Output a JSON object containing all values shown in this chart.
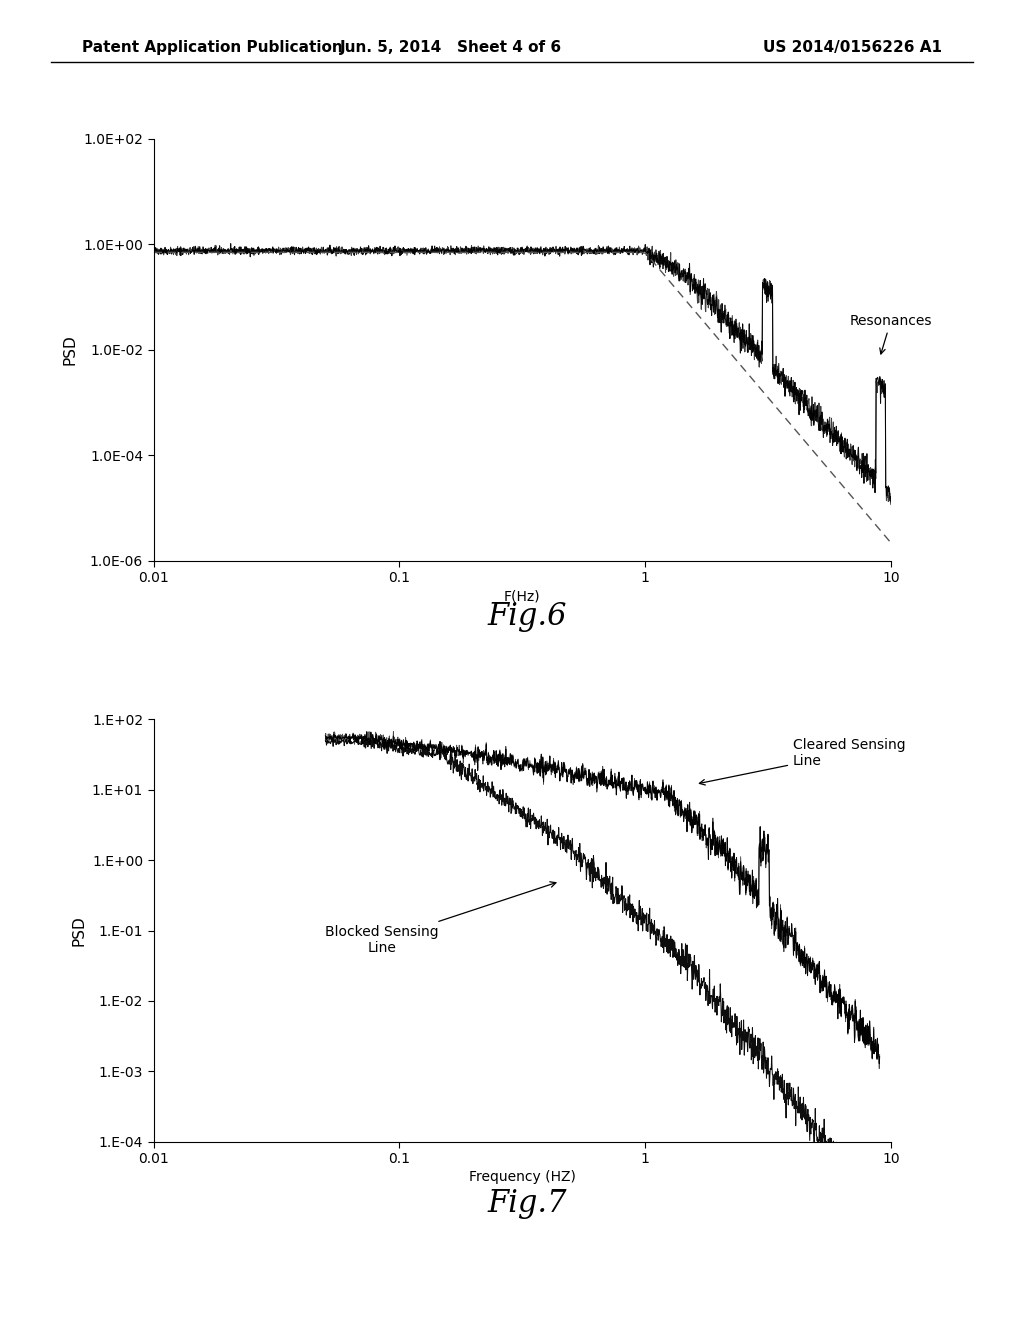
{
  "fig6": {
    "title": "Fig.6",
    "xlabel": "F(Hz)",
    "ylabel": "PSD",
    "xlim": [
      0.01,
      10
    ],
    "ylim": [
      1e-06,
      100.0
    ],
    "yticks_labels": [
      "1.0E-06",
      "1.0E-04",
      "1.0E-02",
      "1.0E+00",
      "1.0E+02"
    ],
    "yticks_vals": [
      1e-06,
      0.0001,
      0.01,
      1.0,
      100.0
    ],
    "xticks_labels": [
      "0.01",
      "0.1",
      "1",
      "10"
    ],
    "xticks_vals": [
      0.01,
      0.1,
      1,
      10
    ],
    "annotation_text": "Resonances"
  },
  "fig7": {
    "title": "Fig.7",
    "xlabel": "Frequency (HZ)",
    "ylabel": "PSD",
    "xlim": [
      0.01,
      10
    ],
    "ylim": [
      0.0001,
      100.0
    ],
    "yticks_labels": [
      "1.E-04",
      "1.E-03",
      "1.E-02",
      "1.E-01",
      "1.E+00",
      "1.E+01",
      "1.E+02"
    ],
    "yticks_vals": [
      0.0001,
      0.001,
      0.01,
      0.1,
      1.0,
      10.0,
      100.0
    ],
    "xticks_labels": [
      "0.01",
      "0.1",
      "1",
      "10"
    ],
    "xticks_vals": [
      0.01,
      0.1,
      1,
      10
    ],
    "annotation_cleared_text": "Cleared Sensing\nLine",
    "annotation_blocked_text": "Blocked Sensing\nLine"
  },
  "header_text": "Patent Application Publication",
  "header_date": "Jun. 5, 2014   Sheet 4 of 6",
  "header_patent": "US 2014/0156226 A1",
  "background_color": "#ffffff"
}
